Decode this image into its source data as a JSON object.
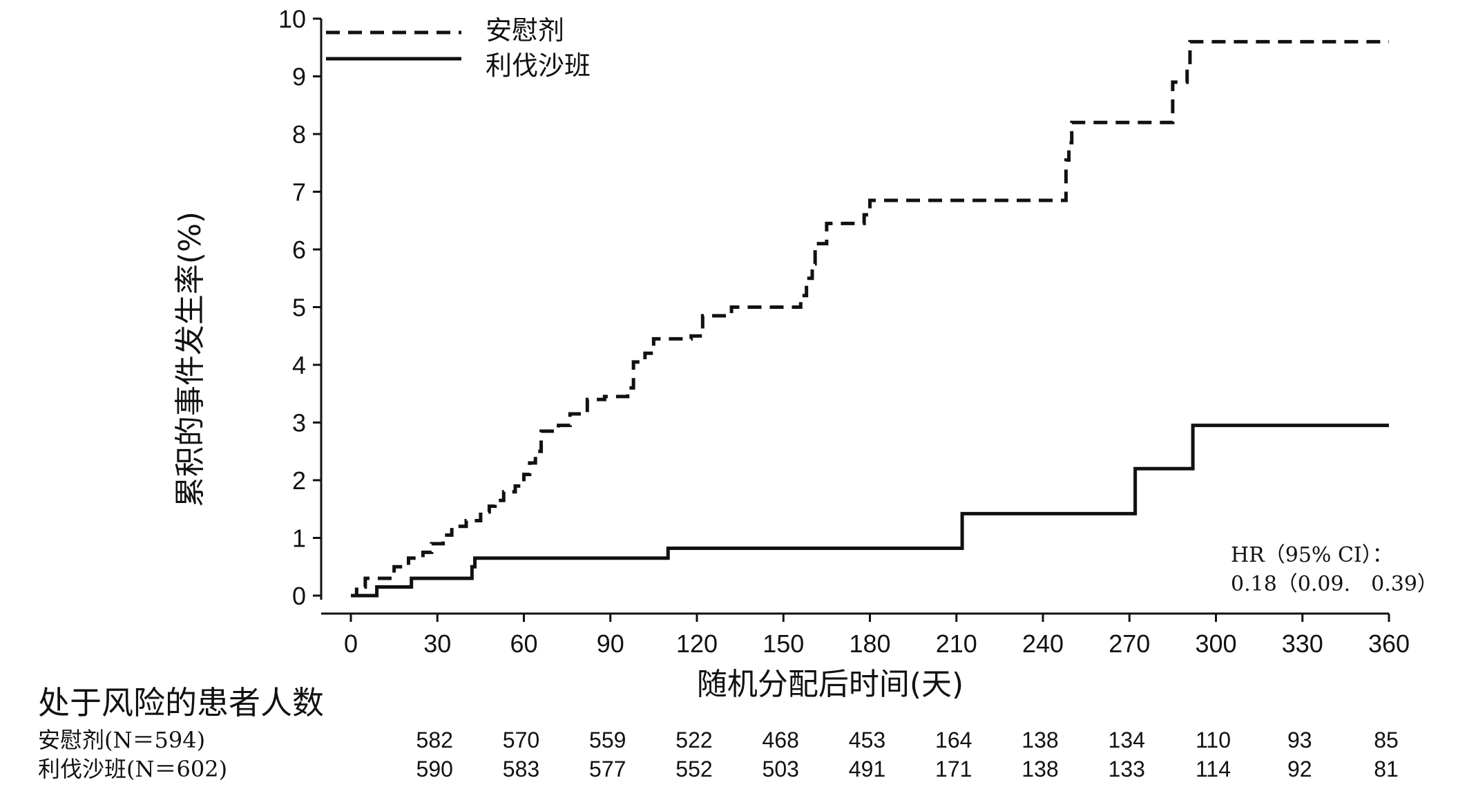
{
  "chart_data": {
    "type": "line",
    "xlabel": "随机分配后时间(天)",
    "ylabel": "累积的事件发生率(%)",
    "xlim": [
      0,
      360
    ],
    "ylim": [
      0,
      10
    ],
    "x_ticks": [
      "0",
      "30",
      "60",
      "90",
      "120",
      "150",
      "180",
      "210",
      "240",
      "270",
      "300",
      "330",
      "360"
    ],
    "y_ticks": [
      "0",
      "1",
      "2",
      "3",
      "4",
      "5",
      "6",
      "7",
      "8",
      "9",
      "10"
    ],
    "legend_position": "top-left",
    "series": [
      {
        "name": "安慰剂",
        "style": "dashed",
        "color": "#111111",
        "points": [
          [
            0,
            0
          ],
          [
            2,
            0.15
          ],
          [
            5,
            0.3
          ],
          [
            15,
            0.5
          ],
          [
            20,
            0.65
          ],
          [
            25,
            0.75
          ],
          [
            28,
            0.9
          ],
          [
            32,
            1.05
          ],
          [
            35,
            1.2
          ],
          [
            40,
            1.3
          ],
          [
            45,
            1.45
          ],
          [
            48,
            1.55
          ],
          [
            50,
            1.65
          ],
          [
            53,
            1.8
          ],
          [
            57,
            1.9
          ],
          [
            60,
            2.1
          ],
          [
            62,
            2.3
          ],
          [
            64,
            2.5
          ],
          [
            66,
            2.85
          ],
          [
            72,
            2.95
          ],
          [
            76,
            3.15
          ],
          [
            82,
            3.4
          ],
          [
            88,
            3.45
          ],
          [
            96,
            3.6
          ],
          [
            98,
            4.05
          ],
          [
            102,
            4.2
          ],
          [
            105,
            4.45
          ],
          [
            118,
            4.5
          ],
          [
            122,
            4.85
          ],
          [
            132,
            5.0
          ],
          [
            156,
            5.2
          ],
          [
            158,
            5.5
          ],
          [
            160,
            5.75
          ],
          [
            161,
            6.1
          ],
          [
            165,
            6.45
          ],
          [
            178,
            6.6
          ],
          [
            180,
            6.85
          ],
          [
            248,
            7.55
          ],
          [
            249,
            7.85
          ],
          [
            250,
            8.2
          ],
          [
            285,
            8.9
          ],
          [
            290,
            9.2
          ],
          [
            291,
            9.6
          ],
          [
            360,
            9.6
          ]
        ]
      },
      {
        "name": "利伐沙班",
        "style": "solid",
        "color": "#111111",
        "points": [
          [
            0,
            0
          ],
          [
            9,
            0.15
          ],
          [
            21,
            0.3
          ],
          [
            42,
            0.5
          ],
          [
            43,
            0.65
          ],
          [
            110,
            0.82
          ],
          [
            212,
            1.42
          ],
          [
            272,
            2.2
          ],
          [
            292,
            2.95
          ],
          [
            360,
            2.95
          ]
        ]
      }
    ],
    "annotation": {
      "hr_label": "HR（95% CI）：",
      "hr_value": "0.18（0.09.　0.39）"
    },
    "risk_table": {
      "title": "处于风险的患者人数",
      "rows": [
        {
          "label": "安慰剂(N＝594)",
          "values": [
            "582",
            "570",
            "559",
            "522",
            "468",
            "453",
            "164",
            "138",
            "134",
            "110",
            "93",
            "85"
          ]
        },
        {
          "label": "利伐沙班(N＝602)",
          "values": [
            "590",
            "583",
            "577",
            "552",
            "503",
            "491",
            "171",
            "138",
            "133",
            "114",
            "92",
            "81"
          ]
        }
      ]
    }
  }
}
